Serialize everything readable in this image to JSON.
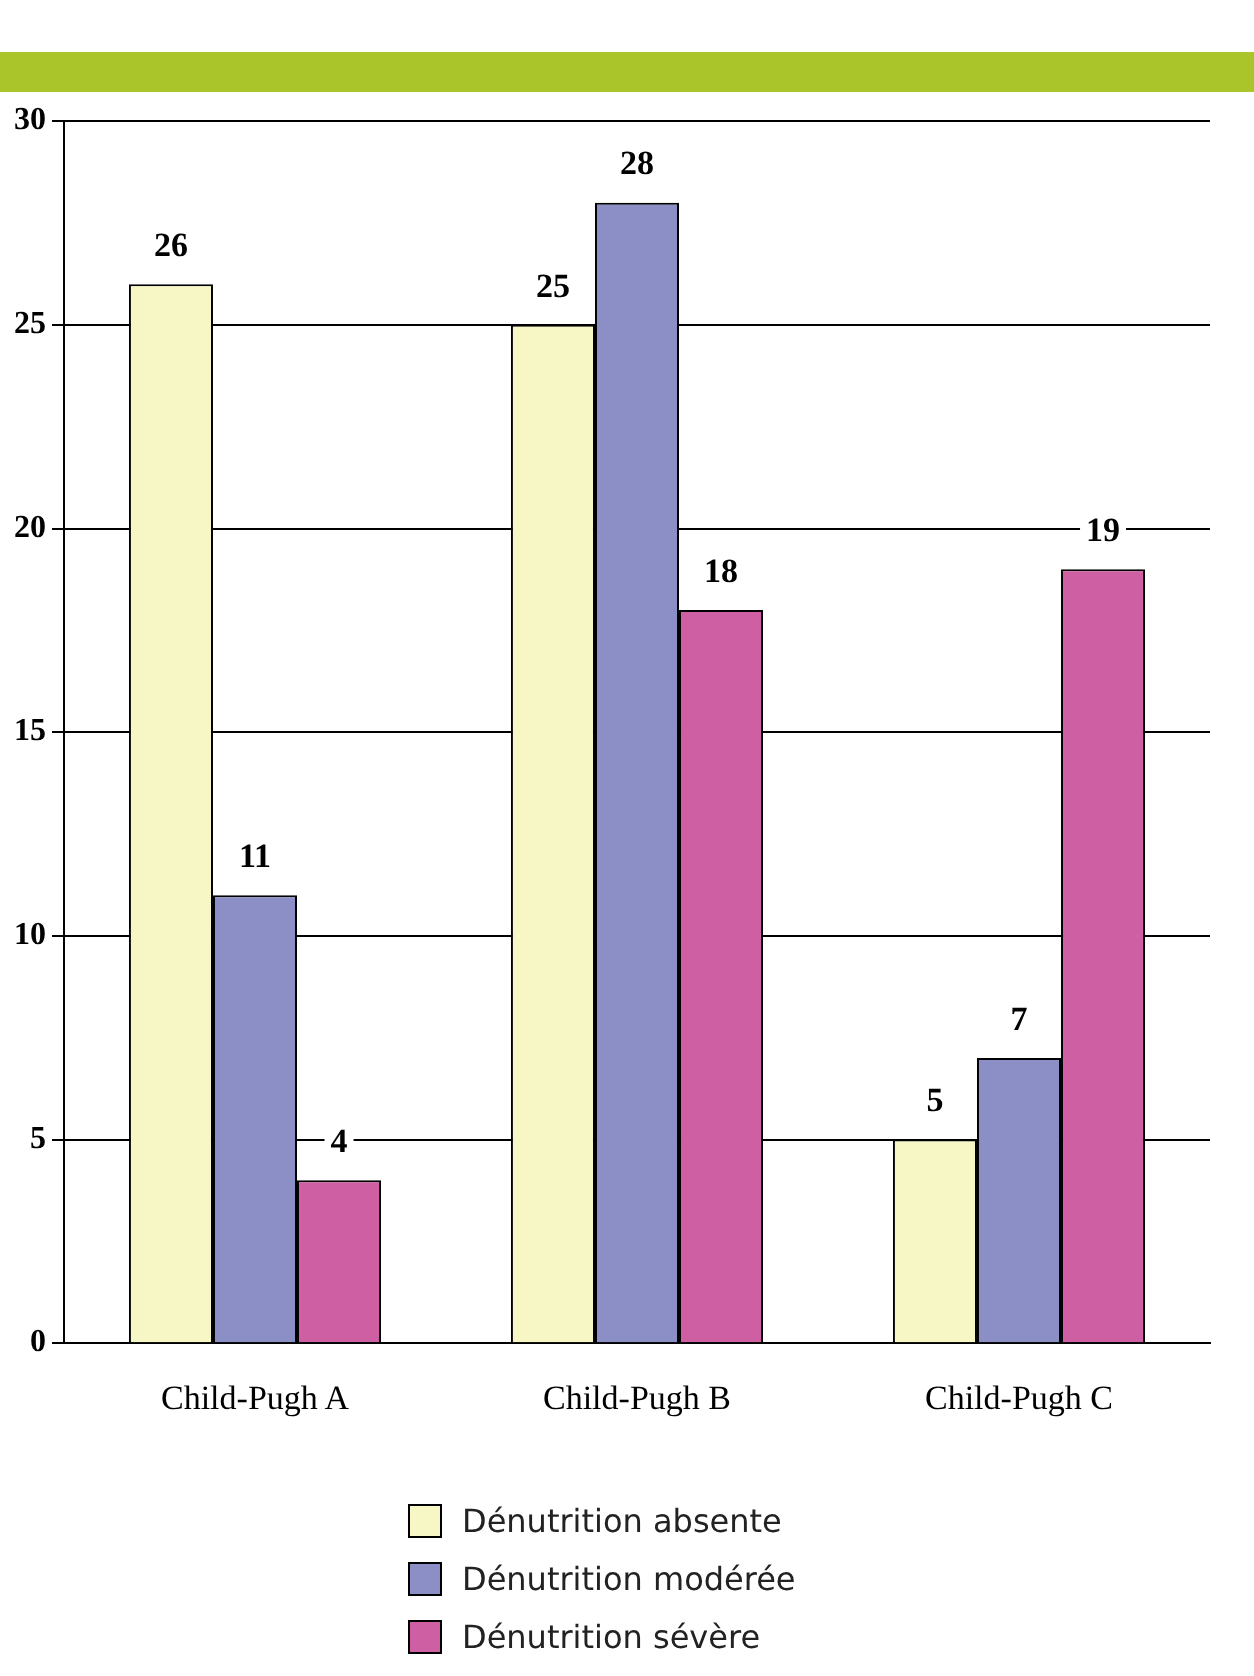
{
  "chart_data": {
    "type": "bar",
    "categories": [
      "Child-Pugh A",
      "Child-Pugh B",
      "Child-Pugh C"
    ],
    "series": [
      {
        "name": "Dénutrition absente",
        "color": "#f7f7c6",
        "values": [
          26,
          25,
          5
        ]
      },
      {
        "name": "Dénutrition modérée",
        "color": "#8c8fc6",
        "values": [
          11,
          28,
          7
        ]
      },
      {
        "name": "Dénutrition sévère",
        "color": "#cf5fa3",
        "values": [
          4,
          18,
          19
        ]
      }
    ],
    "ylim": [
      0,
      30
    ],
    "yticks": [
      0,
      5,
      10,
      15,
      20,
      25,
      30
    ],
    "grid": "y",
    "legend": "bottom",
    "data_labels": true
  }
}
